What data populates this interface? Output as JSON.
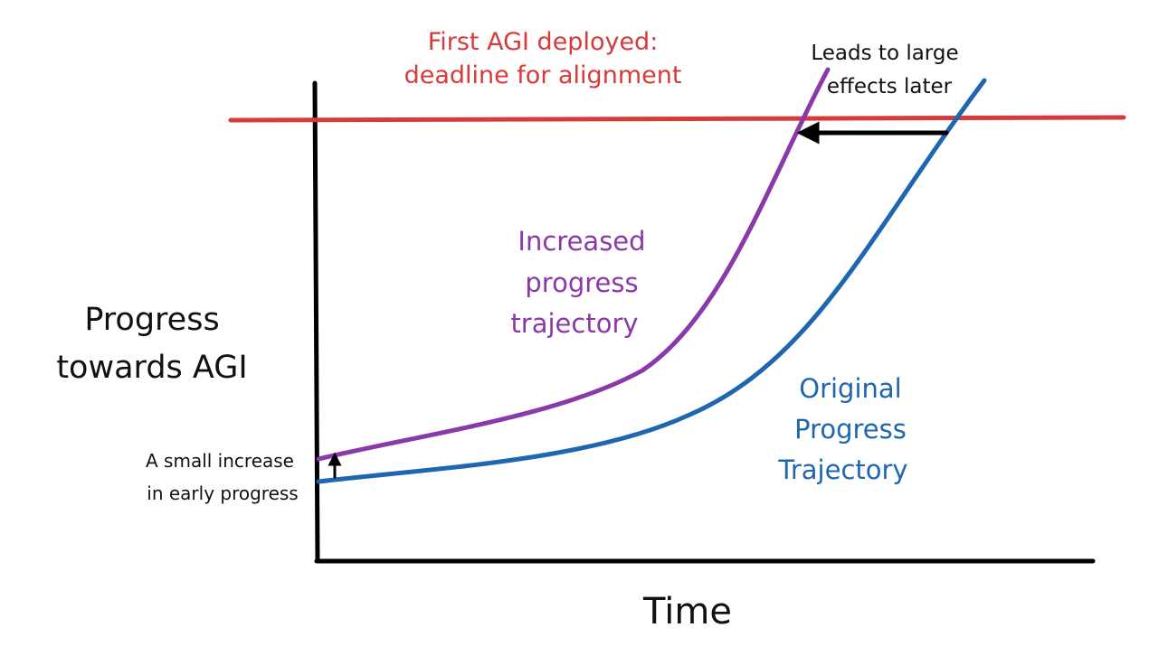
{
  "labels": {
    "deadline_line1": "First AGI deployed:",
    "deadline_line2": "deadline for alignment",
    "leads_line1": "Leads to large",
    "leads_line2": "effects later",
    "increased_line1": "Increased",
    "increased_line2": "progress",
    "increased_line3": "trajectory",
    "original_line1": "Original",
    "original_line2": "Progress",
    "original_line3": "Trajectory",
    "yaxis_line1": "Progress",
    "yaxis_line2": "towards AGI",
    "small_line1": "A small increase",
    "small_line2": "in early progress",
    "xaxis": "Time"
  },
  "colors": {
    "deadline": "#d63a3a",
    "increased": "#8a3aa8",
    "original": "#1f66b0",
    "axis": "#000000"
  }
}
